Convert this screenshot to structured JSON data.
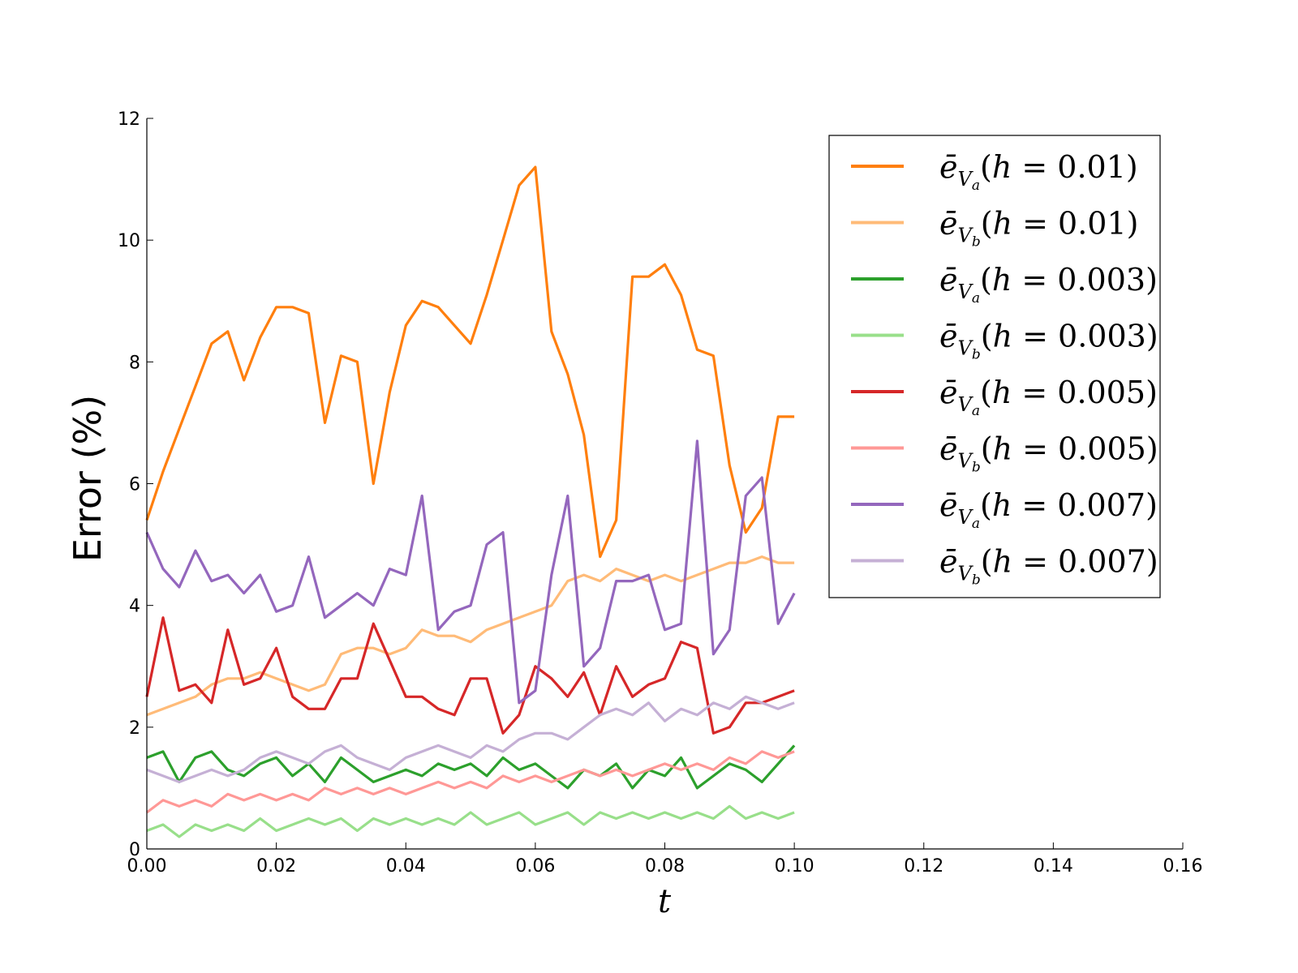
{
  "chart_data": {
    "type": "line",
    "xlabel": "t",
    "ylabel": "Error (%)",
    "xlim": [
      0,
      0.16
    ],
    "ylim": [
      0,
      12
    ],
    "xticks": [
      "0.00",
      "0.02",
      "0.04",
      "0.06",
      "0.08",
      "0.10",
      "0.12",
      "0.14",
      "0.16"
    ],
    "yticks": [
      "0",
      "2",
      "4",
      "6",
      "8",
      "10",
      "12"
    ],
    "grid": false,
    "legend_position": "top-right",
    "x": [
      0.0,
      0.0025,
      0.005,
      0.0075,
      0.01,
      0.0125,
      0.015,
      0.0175,
      0.02,
      0.0225,
      0.025,
      0.0275,
      0.03,
      0.0325,
      0.035,
      0.0375,
      0.04,
      0.0425,
      0.045,
      0.0475,
      0.05,
      0.0525,
      0.055,
      0.0575,
      0.06,
      0.0625,
      0.065,
      0.0675,
      0.07,
      0.0725,
      0.075,
      0.0775,
      0.08,
      0.0825,
      0.085,
      0.0875,
      0.09,
      0.0925,
      0.095,
      0.0975,
      0.1
    ],
    "series": [
      {
        "name": "ē_Va(h = 0.01)",
        "color": "#ff7f0e",
        "width": 3.2,
        "values": [
          5.4,
          6.2,
          6.9,
          7.6,
          8.3,
          8.5,
          7.7,
          8.4,
          8.9,
          8.9,
          8.8,
          7.0,
          8.1,
          8.0,
          6.0,
          7.5,
          8.6,
          9.0,
          8.9,
          8.6,
          8.3,
          9.1,
          10.0,
          10.9,
          11.2,
          8.5,
          7.8,
          6.8,
          4.8,
          5.4,
          9.4,
          9.4,
          9.6,
          9.1,
          8.2,
          8.1,
          6.3,
          5.2,
          5.6,
          7.1,
          7.1
        ]
      },
      {
        "name": "ē_Vb(h = 0.01)",
        "color": "#ffbb78",
        "width": 3.2,
        "values": [
          2.2,
          2.3,
          2.4,
          2.5,
          2.7,
          2.8,
          2.8,
          2.9,
          2.8,
          2.7,
          2.6,
          2.7,
          3.2,
          3.3,
          3.3,
          3.2,
          3.3,
          3.6,
          3.5,
          3.5,
          3.4,
          3.6,
          3.7,
          3.8,
          3.9,
          4.0,
          4.4,
          4.5,
          4.4,
          4.6,
          4.5,
          4.4,
          4.5,
          4.4,
          4.5,
          4.6,
          4.7,
          4.7,
          4.8,
          4.7,
          4.7
        ]
      },
      {
        "name": "ē_Va(h = 0.003)",
        "color": "#2ca02c",
        "width": 3.2,
        "values": [
          1.5,
          1.6,
          1.1,
          1.5,
          1.6,
          1.3,
          1.2,
          1.4,
          1.5,
          1.2,
          1.4,
          1.1,
          1.5,
          1.3,
          1.1,
          1.2,
          1.3,
          1.2,
          1.4,
          1.3,
          1.4,
          1.2,
          1.5,
          1.3,
          1.4,
          1.2,
          1.0,
          1.3,
          1.2,
          1.4,
          1.0,
          1.3,
          1.2,
          1.5,
          1.0,
          1.2,
          1.4,
          1.3,
          1.1,
          1.4,
          1.7
        ]
      },
      {
        "name": "ē_Vb(h = 0.003)",
        "color": "#98df8a",
        "width": 3.2,
        "values": [
          0.3,
          0.4,
          0.2,
          0.4,
          0.3,
          0.4,
          0.3,
          0.5,
          0.3,
          0.4,
          0.5,
          0.4,
          0.5,
          0.3,
          0.5,
          0.4,
          0.5,
          0.4,
          0.5,
          0.4,
          0.6,
          0.4,
          0.5,
          0.6,
          0.4,
          0.5,
          0.6,
          0.4,
          0.6,
          0.5,
          0.6,
          0.5,
          0.6,
          0.5,
          0.6,
          0.5,
          0.7,
          0.5,
          0.6,
          0.5,
          0.6
        ]
      },
      {
        "name": "ē_Va(h = 0.005)",
        "color": "#d62728",
        "width": 3.2,
        "values": [
          2.5,
          3.8,
          2.6,
          2.7,
          2.4,
          3.6,
          2.7,
          2.8,
          3.3,
          2.5,
          2.3,
          2.3,
          2.8,
          2.8,
          3.7,
          3.1,
          2.5,
          2.5,
          2.3,
          2.2,
          2.8,
          2.8,
          1.9,
          2.2,
          3.0,
          2.8,
          2.5,
          2.9,
          2.2,
          3.0,
          2.5,
          2.7,
          2.8,
          3.4,
          3.3,
          1.9,
          2.0,
          2.4,
          2.4,
          2.5,
          2.6
        ]
      },
      {
        "name": "ē_Vb(h = 0.005)",
        "color": "#ff9896",
        "width": 3.2,
        "values": [
          0.6,
          0.8,
          0.7,
          0.8,
          0.7,
          0.9,
          0.8,
          0.9,
          0.8,
          0.9,
          0.8,
          1.0,
          0.9,
          1.0,
          0.9,
          1.0,
          0.9,
          1.0,
          1.1,
          1.0,
          1.1,
          1.0,
          1.2,
          1.1,
          1.2,
          1.1,
          1.2,
          1.3,
          1.2,
          1.3,
          1.2,
          1.3,
          1.4,
          1.3,
          1.4,
          1.3,
          1.5,
          1.4,
          1.6,
          1.5,
          1.6
        ]
      },
      {
        "name": "ē_Va(h = 0.007)",
        "color": "#9467bd",
        "width": 3.2,
        "values": [
          5.2,
          4.6,
          4.3,
          4.9,
          4.4,
          4.5,
          4.2,
          4.5,
          3.9,
          4.0,
          4.8,
          3.8,
          4.0,
          4.2,
          4.0,
          4.6,
          4.5,
          5.8,
          3.6,
          3.9,
          4.0,
          5.0,
          5.2,
          2.4,
          2.6,
          4.5,
          5.8,
          3.0,
          3.3,
          4.4,
          4.4,
          4.5,
          3.6,
          3.7,
          6.7,
          3.2,
          3.6,
          5.8,
          6.1,
          3.7,
          4.2
        ]
      },
      {
        "name": "ē_Vb(h = 0.007)",
        "color": "#c5b0d5",
        "width": 3.2,
        "values": [
          1.3,
          1.2,
          1.1,
          1.2,
          1.3,
          1.2,
          1.3,
          1.5,
          1.6,
          1.5,
          1.4,
          1.6,
          1.7,
          1.5,
          1.4,
          1.3,
          1.5,
          1.6,
          1.7,
          1.6,
          1.5,
          1.7,
          1.6,
          1.8,
          1.9,
          1.9,
          1.8,
          2.0,
          2.2,
          2.3,
          2.2,
          2.4,
          2.1,
          2.3,
          2.2,
          2.4,
          2.3,
          2.5,
          2.4,
          2.3,
          2.4
        ]
      }
    ],
    "legend": [
      {
        "sub": "a",
        "h": "0.01"
      },
      {
        "sub": "b",
        "h": "0.01"
      },
      {
        "sub": "a",
        "h": "0.003"
      },
      {
        "sub": "b",
        "h": "0.003"
      },
      {
        "sub": "a",
        "h": "0.005"
      },
      {
        "sub": "b",
        "h": "0.005"
      },
      {
        "sub": "a",
        "h": "0.007"
      },
      {
        "sub": "b",
        "h": "0.007"
      }
    ]
  }
}
